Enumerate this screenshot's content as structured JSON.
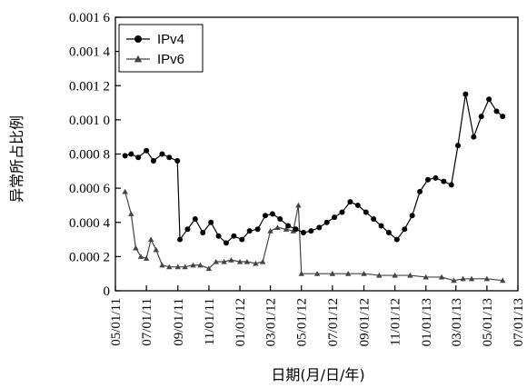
{
  "chart_data": {
    "type": "line",
    "xlabel": "日期(月/日/年)",
    "ylabel": "异常所占比例",
    "ylim": [
      0,
      0.0016
    ],
    "y_ticks": [
      0,
      0.0002,
      0.0004,
      0.0006,
      0.0008,
      0.001,
      0.0012,
      0.0014,
      0.0016
    ],
    "y_tick_labels": [
      "0",
      "0.000 2",
      "0.000 4",
      "0.000 6",
      "0.000 8",
      "0.001 0",
      "0.001 2",
      "0.001 4",
      "0.001 6"
    ],
    "x_ticks": [
      "2011-05-01",
      "2011-07-01",
      "2011-09-01",
      "2011-11-01",
      "2012-01-01",
      "2012-03-01",
      "2012-05-01",
      "2012-07-01",
      "2012-09-01",
      "2012-11-01",
      "2013-01-01",
      "2013-03-01",
      "2013-05-01",
      "2013-07-01"
    ],
    "x_tick_labels": [
      "05/01/11",
      "07/01/11",
      "09/01/11",
      "11/01/11",
      "01/01/12",
      "03/01/12",
      "05/01/12",
      "07/01/12",
      "09/01/12",
      "11/01/12",
      "01/01/13",
      "03/01/13",
      "05/01/13",
      "07/01/13"
    ],
    "xlim": [
      "2011-05-01",
      "2013-07-01"
    ],
    "grid": false,
    "legend_position": "top-left",
    "series": [
      {
        "name": "IPv4",
        "marker": "circle",
        "color": "#000000",
        "points": [
          [
            "2011-05-20",
            0.00079
          ],
          [
            "2011-06-01",
            0.0008
          ],
          [
            "2011-06-15",
            0.00078
          ],
          [
            "2011-07-01",
            0.00082
          ],
          [
            "2011-07-15",
            0.00076
          ],
          [
            "2011-08-01",
            0.0008
          ],
          [
            "2011-08-15",
            0.00078
          ],
          [
            "2011-08-31",
            0.00076
          ],
          [
            "2011-09-05",
            0.0003
          ],
          [
            "2011-09-20",
            0.00036
          ],
          [
            "2011-10-05",
            0.00042
          ],
          [
            "2011-10-20",
            0.00034
          ],
          [
            "2011-11-05",
            0.0004
          ],
          [
            "2011-11-20",
            0.00032
          ],
          [
            "2011-12-05",
            0.00028
          ],
          [
            "2011-12-20",
            0.00032
          ],
          [
            "2012-01-05",
            0.0003
          ],
          [
            "2012-01-20",
            0.00035
          ],
          [
            "2012-02-05",
            0.00036
          ],
          [
            "2012-02-20",
            0.00044
          ],
          [
            "2012-03-05",
            0.00045
          ],
          [
            "2012-03-20",
            0.00042
          ],
          [
            "2012-04-05",
            0.00038
          ],
          [
            "2012-04-20",
            0.00036
          ],
          [
            "2012-05-05",
            0.00034
          ],
          [
            "2012-05-20",
            0.00035
          ],
          [
            "2012-06-05",
            0.00037
          ],
          [
            "2012-06-20",
            0.0004
          ],
          [
            "2012-07-05",
            0.00043
          ],
          [
            "2012-07-20",
            0.00046
          ],
          [
            "2012-08-05",
            0.00052
          ],
          [
            "2012-08-20",
            0.0005
          ],
          [
            "2012-09-05",
            0.00046
          ],
          [
            "2012-09-20",
            0.00042
          ],
          [
            "2012-10-05",
            0.00038
          ],
          [
            "2012-10-20",
            0.00034
          ],
          [
            "2012-11-05",
            0.0003
          ],
          [
            "2012-11-20",
            0.00036
          ],
          [
            "2012-12-05",
            0.00044
          ],
          [
            "2012-12-20",
            0.00058
          ],
          [
            "2013-01-05",
            0.00065
          ],
          [
            "2013-01-20",
            0.00066
          ],
          [
            "2013-02-05",
            0.00064
          ],
          [
            "2013-02-20",
            0.00062
          ],
          [
            "2013-03-05",
            0.00085
          ],
          [
            "2013-03-20",
            0.00115
          ],
          [
            "2013-04-05",
            0.0009
          ],
          [
            "2013-04-20",
            0.00102
          ],
          [
            "2013-05-05",
            0.00112
          ],
          [
            "2013-05-20",
            0.00105
          ],
          [
            "2013-06-01",
            0.00102
          ]
        ]
      },
      {
        "name": "IPv6",
        "marker": "triangle",
        "color": "#444444",
        "points": [
          [
            "2011-05-20",
            0.00058
          ],
          [
            "2011-06-01",
            0.00045
          ],
          [
            "2011-06-10",
            0.00025
          ],
          [
            "2011-06-20",
            0.0002
          ],
          [
            "2011-07-01",
            0.00019
          ],
          [
            "2011-07-10",
            0.0003
          ],
          [
            "2011-07-20",
            0.00024
          ],
          [
            "2011-08-01",
            0.00015
          ],
          [
            "2011-08-15",
            0.00014
          ],
          [
            "2011-09-01",
            0.00014
          ],
          [
            "2011-09-15",
            0.00014
          ],
          [
            "2011-10-01",
            0.00015
          ],
          [
            "2011-10-15",
            0.00015
          ],
          [
            "2011-11-01",
            0.00013
          ],
          [
            "2011-11-15",
            0.00017
          ],
          [
            "2011-12-01",
            0.00017
          ],
          [
            "2011-12-15",
            0.00018
          ],
          [
            "2012-01-01",
            0.00017
          ],
          [
            "2012-01-15",
            0.00017
          ],
          [
            "2012-02-01",
            0.00016
          ],
          [
            "2012-02-15",
            0.00017
          ],
          [
            "2012-03-01",
            0.00035
          ],
          [
            "2012-03-15",
            0.00037
          ],
          [
            "2012-04-01",
            0.00036
          ],
          [
            "2012-04-15",
            0.00035
          ],
          [
            "2012-04-25",
            0.0005
          ],
          [
            "2012-05-01",
            0.0001
          ],
          [
            "2012-06-01",
            0.0001
          ],
          [
            "2012-07-01",
            0.0001
          ],
          [
            "2012-08-01",
            0.0001
          ],
          [
            "2012-09-01",
            0.0001
          ],
          [
            "2012-10-01",
            9e-05
          ],
          [
            "2012-11-01",
            9e-05
          ],
          [
            "2012-12-01",
            9e-05
          ],
          [
            "2013-01-01",
            8e-05
          ],
          [
            "2013-02-01",
            8e-05
          ],
          [
            "2013-02-25",
            6e-05
          ],
          [
            "2013-03-15",
            7e-05
          ],
          [
            "2013-04-01",
            7e-05
          ],
          [
            "2013-05-01",
            7e-05
          ],
          [
            "2013-06-01",
            6e-05
          ]
        ]
      }
    ]
  }
}
